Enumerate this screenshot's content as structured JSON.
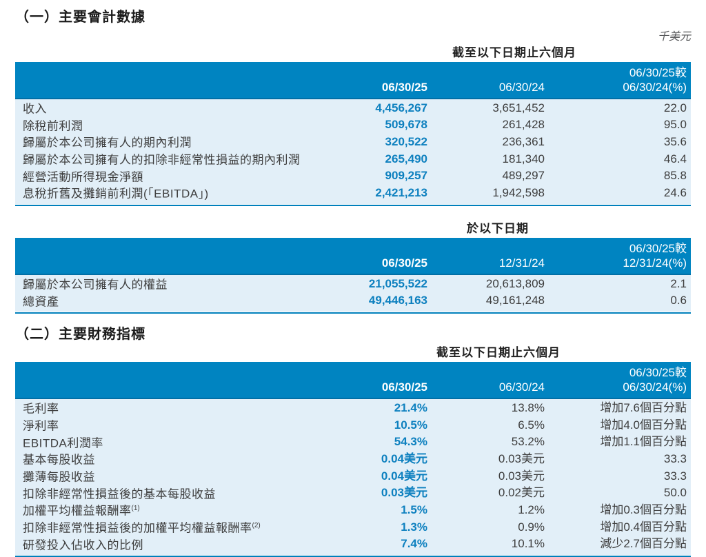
{
  "page": {
    "unit_note": "千美元",
    "section1_title": "（一）主要會計數據",
    "section2_title": "（二）主要財務指標"
  },
  "colors": {
    "header_band_blue": "#0084c1",
    "table_body_bg": "#e2eff8",
    "current_value_blue": "#0d80bf",
    "bottom_rule_blue": "#0080bc",
    "band_separator_blue": "#016fa6",
    "body_text": "#3e3e3e"
  },
  "tables": [
    {
      "period_header": "截至以下日期止六個月",
      "columns": {
        "current": "06/30/25",
        "prior": "06/30/24",
        "change_line1": "06/30/25較",
        "change_line2": "06/30/24(%)"
      },
      "rows": [
        {
          "label": "收入",
          "v1": "4,456,267",
          "v2": "3,651,452",
          "chg": "22.0"
        },
        {
          "label": "除稅前利潤",
          "v1": "509,678",
          "v2": "261,428",
          "chg": "95.0"
        },
        {
          "label": "歸屬於本公司擁有人的期內利潤",
          "v1": "320,522",
          "v2": "236,361",
          "chg": "35.6"
        },
        {
          "label": "歸屬於本公司擁有人的扣除非經常性損益的期內利潤",
          "v1": "265,490",
          "v2": "181,340",
          "chg": "46.4"
        },
        {
          "label": "經營活動所得現金淨額",
          "v1": "909,257",
          "v2": "489,297",
          "chg": "85.8"
        },
        {
          "label": "息稅折舊及攤銷前利潤(「EBITDA」)",
          "v1": "2,421,213",
          "v2": "1,942,598",
          "chg": "24.6"
        }
      ]
    },
    {
      "period_header": "於以下日期",
      "columns": {
        "current": "06/30/25",
        "prior": "12/31/24",
        "change_line1": "06/30/25較",
        "change_line2": "12/31/24(%)"
      },
      "rows": [
        {
          "label": "歸屬於本公司擁有人的權益",
          "v1": "21,055,522",
          "v2": "20,613,809",
          "chg": "2.1"
        },
        {
          "label": "總資產",
          "v1": "49,446,163",
          "v2": "49,161,248",
          "chg": "0.6"
        }
      ]
    },
    {
      "period_header": "截至以下日期止六個月",
      "columns": {
        "current": "06/30/25",
        "prior": "06/30/24",
        "change_line1": "06/30/25較",
        "change_line2": "06/30/24(%)"
      },
      "rows": [
        {
          "label": "毛利率",
          "v1": "21.4%",
          "v2": "13.8%",
          "chg": "增加7.6個百分點"
        },
        {
          "label": "淨利率",
          "v1": "10.5%",
          "v2": "6.5%",
          "chg": "增加4.0個百分點"
        },
        {
          "label": "EBITDA利潤率",
          "v1": "54.3%",
          "v2": "53.2%",
          "chg": "增加1.1個百分點"
        },
        {
          "label": "基本每股收益",
          "v1": "0.04美元",
          "v2": "0.03美元",
          "chg": "33.3"
        },
        {
          "label": "攤薄每股收益",
          "v1": "0.04美元",
          "v2": "0.03美元",
          "chg": "33.3"
        },
        {
          "label": "扣除非經常性損益後的基本每股收益",
          "v1": "0.03美元",
          "v2": "0.02美元",
          "chg": "50.0"
        },
        {
          "label": "加權平均權益報酬率",
          "sup": "(1)",
          "v1": "1.5%",
          "v2": "1.2%",
          "chg": "增加0.3個百分點"
        },
        {
          "label": "扣除非經常性損益後的加權平均權益報酬率",
          "sup": "(2)",
          "v1": "1.3%",
          "v2": "0.9%",
          "chg": "增加0.4個百分點"
        },
        {
          "label": "研發投入佔收入的比例",
          "v1": "7.4%",
          "v2": "10.1%",
          "chg": "減少2.7個百分點"
        }
      ]
    }
  ]
}
